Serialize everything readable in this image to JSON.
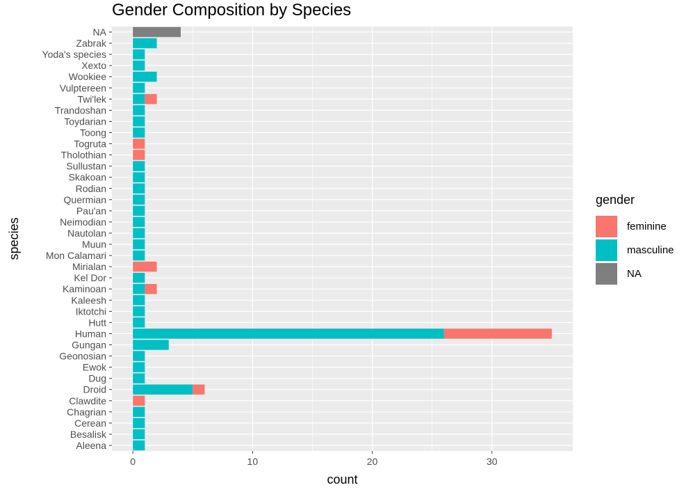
{
  "chart_data": {
    "type": "bar",
    "orientation": "horizontal",
    "stacked": true,
    "title": "Gender Composition by Species",
    "xlabel": "count",
    "ylabel": "species",
    "xlim": [
      -1.75,
      36.75
    ],
    "xticks": [
      0,
      10,
      20,
      30
    ],
    "grid": true,
    "legend_title": "gender",
    "legend_position": "right",
    "categories": [
      "Aleena",
      "Besalisk",
      "Cerean",
      "Chagrian",
      "Clawdite",
      "Droid",
      "Dug",
      "Ewok",
      "Geonosian",
      "Gungan",
      "Human",
      "Hutt",
      "Iktotchi",
      "Kaleesh",
      "Kaminoan",
      "Kel Dor",
      "Mirialan",
      "Mon Calamari",
      "Muun",
      "Nautolan",
      "Neimodian",
      "Pau'an",
      "Quermian",
      "Rodian",
      "Skakoan",
      "Sullustan",
      "Tholothian",
      "Togruta",
      "Toong",
      "Toydarian",
      "Trandoshan",
      "Twi'lek",
      "Vulptereen",
      "Wookiee",
      "Xexto",
      "Yoda's species",
      "Zabrak",
      "NA"
    ],
    "series": [
      {
        "name": "masculine",
        "color": "#00BFC4",
        "values": [
          1,
          1,
          1,
          1,
          0,
          5,
          1,
          1,
          1,
          3,
          26,
          1,
          1,
          1,
          1,
          1,
          0,
          1,
          1,
          1,
          1,
          1,
          1,
          1,
          1,
          1,
          0,
          0,
          1,
          1,
          1,
          1,
          1,
          2,
          1,
          1,
          2,
          0
        ]
      },
      {
        "name": "feminine",
        "color": "#F8766D",
        "values": [
          0,
          0,
          0,
          0,
          1,
          1,
          0,
          0,
          0,
          0,
          9,
          0,
          0,
          0,
          1,
          0,
          2,
          0,
          0,
          0,
          0,
          0,
          0,
          0,
          0,
          0,
          1,
          1,
          0,
          0,
          0,
          1,
          0,
          0,
          0,
          0,
          0,
          0
        ]
      },
      {
        "name": "NA",
        "color": "#7F7F7F",
        "values": [
          0,
          0,
          0,
          0,
          0,
          0,
          0,
          0,
          0,
          0,
          0,
          0,
          0,
          0,
          0,
          0,
          0,
          0,
          0,
          0,
          0,
          0,
          0,
          0,
          0,
          0,
          0,
          0,
          0,
          0,
          0,
          0,
          0,
          0,
          0,
          0,
          0,
          4
        ]
      }
    ],
    "legend": [
      {
        "name": "feminine",
        "color": "#F8766D"
      },
      {
        "name": "masculine",
        "color": "#00BFC4"
      },
      {
        "name": "NA",
        "color": "#7F7F7F"
      }
    ],
    "panel_background": "#EBEBEB",
    "grid_color": "#FFFFFF"
  }
}
